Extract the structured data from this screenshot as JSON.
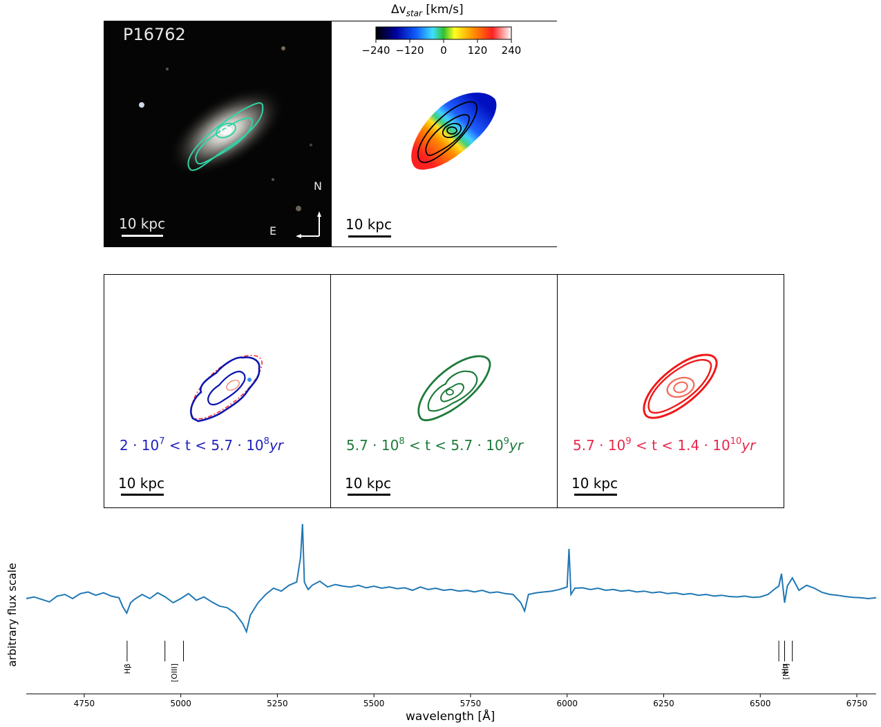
{
  "top_left": {
    "object_id": "P16762",
    "scale_label": "10 kpc",
    "north_label": "N",
    "east_label": "E"
  },
  "top_right": {
    "colorbar_title": "Δv",
    "colorbar_title_sub": "star",
    "colorbar_title_unit": " [km/s]",
    "colorbar_ticks": [
      "−240",
      "−120",
      "0",
      "120",
      "240"
    ],
    "scale_label": "10 kpc"
  },
  "populations": [
    {
      "base1": "2 · 10",
      "exp1": "7",
      "mid": " < t < 5.7 · 10",
      "exp2": "8",
      "unit": "yr",
      "color": "#2020c0",
      "scale_label": "10 kpc"
    },
    {
      "base1": "5.7 · 10",
      "exp1": "8",
      "mid": " < t < 5.7 · 10",
      "exp2": "9",
      "unit": "yr",
      "color": "#1d7a3a",
      "scale_label": "10 kpc"
    },
    {
      "base1": "5.7 · 10",
      "exp1": "9",
      "mid": " < t < 1.4 · 10",
      "exp2": "10",
      "unit": "yr",
      "color": "#e8284c",
      "scale_label": "10 kpc"
    }
  ],
  "chart_data": {
    "type": "line",
    "title": "",
    "xlabel": "wavelength [Å]",
    "ylabel": "arbitrary flux scale",
    "xlim": [
      4600,
      6800
    ],
    "xticks": [
      4750,
      5000,
      5250,
      5500,
      5750,
      6000,
      6250,
      6500,
      6750
    ],
    "color": "#1f77b4",
    "series": [
      {
        "x": [
          4600,
          4620,
          4640,
          4660,
          4680,
          4700,
          4720,
          4740,
          4760,
          4780,
          4800,
          4820,
          4840,
          4850,
          4860,
          4870,
          4880,
          4900,
          4920,
          4940,
          4960,
          4980,
          5000,
          5020,
          5040,
          5060,
          5080,
          5100,
          5120,
          5140,
          5160,
          5170,
          5180,
          5200,
          5220,
          5240,
          5260,
          5280,
          5300,
          5310,
          5315,
          5320,
          5325,
          5330,
          5340,
          5360,
          5380,
          5400,
          5420,
          5440,
          5460,
          5480,
          5500,
          5520,
          5540,
          5560,
          5580,
          5600,
          5620,
          5640,
          5660,
          5680,
          5700,
          5720,
          5740,
          5760,
          5780,
          5800,
          5820,
          5840,
          5860,
          5880,
          5890,
          5900,
          5920,
          5940,
          5960,
          5980,
          6000,
          6005,
          6010,
          6020,
          6040,
          6060,
          6080,
          6100,
          6120,
          6140,
          6160,
          6180,
          6200,
          6220,
          6240,
          6260,
          6280,
          6300,
          6320,
          6340,
          6360,
          6380,
          6400,
          6420,
          6440,
          6460,
          6480,
          6500,
          6520,
          6540,
          6548,
          6555,
          6563,
          6570,
          6583,
          6600,
          6620,
          6640,
          6660,
          6680,
          6700,
          6720,
          6740,
          6760,
          6780,
          6800
        ],
        "y": [
          0.3,
          0.34,
          0.28,
          0.22,
          0.36,
          0.4,
          0.3,
          0.42,
          0.46,
          0.38,
          0.44,
          0.36,
          0.32,
          0.1,
          -0.05,
          0.2,
          0.28,
          0.4,
          0.3,
          0.44,
          0.34,
          0.2,
          0.3,
          0.42,
          0.26,
          0.34,
          0.22,
          0.12,
          0.08,
          -0.05,
          -0.3,
          -0.5,
          -0.1,
          0.2,
          0.4,
          0.55,
          0.48,
          0.62,
          0.7,
          1.3,
          2.1,
          0.7,
          0.6,
          0.52,
          0.62,
          0.72,
          0.58,
          0.64,
          0.6,
          0.58,
          0.62,
          0.56,
          0.6,
          0.55,
          0.58,
          0.54,
          0.56,
          0.5,
          0.58,
          0.52,
          0.55,
          0.5,
          0.52,
          0.48,
          0.5,
          0.46,
          0.5,
          0.44,
          0.46,
          0.42,
          0.4,
          0.2,
          0.0,
          0.4,
          0.44,
          0.46,
          0.48,
          0.52,
          0.58,
          1.5,
          0.4,
          0.55,
          0.56,
          0.52,
          0.55,
          0.5,
          0.52,
          0.48,
          0.5,
          0.46,
          0.48,
          0.44,
          0.46,
          0.42,
          0.44,
          0.4,
          0.42,
          0.38,
          0.4,
          0.36,
          0.38,
          0.35,
          0.34,
          0.36,
          0.33,
          0.34,
          0.4,
          0.55,
          0.6,
          0.9,
          0.2,
          0.6,
          0.8,
          0.5,
          0.62,
          0.55,
          0.45,
          0.4,
          0.38,
          0.35,
          0.33,
          0.32,
          0.3,
          0.32
        ]
      }
    ],
    "line_markers": [
      {
        "label": "Hβ",
        "x": [
          4861
        ]
      },
      {
        "label": "[OIII]",
        "x": [
          4959,
          5007
        ]
      },
      {
        "label": "Hα",
        "x": [
          6563
        ]
      },
      {
        "label": "[NII]",
        "x": [
          6548,
          6583
        ]
      }
    ]
  }
}
